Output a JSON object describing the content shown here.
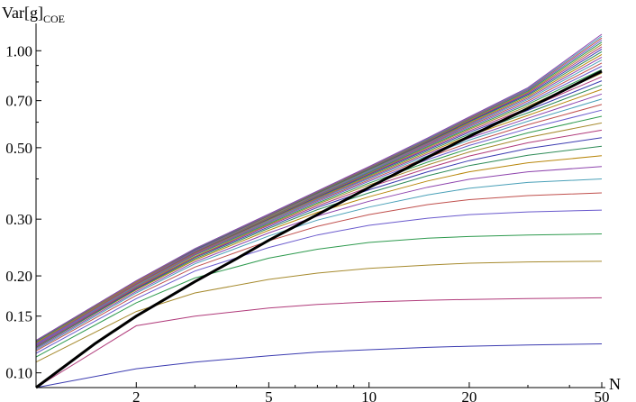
{
  "chart_data": {
    "type": "line",
    "title": "",
    "xlabel": "N",
    "ylabel": {
      "main": "Var[g]",
      "sub": "COE"
    },
    "xscale": "log",
    "yscale": "log",
    "xlim": [
      1,
      50
    ],
    "ylim": [
      0.09,
      1.2
    ],
    "xticks": [
      {
        "value": 2,
        "label": "2"
      },
      {
        "value": 5,
        "label": "5"
      },
      {
        "value": 10,
        "label": "10"
      },
      {
        "value": 20,
        "label": "20"
      },
      {
        "value": 50,
        "label": "50"
      }
    ],
    "yticks": [
      {
        "value": 0.1,
        "label": "0.10"
      },
      {
        "value": 0.15,
        "label": "0.15"
      },
      {
        "value": 0.2,
        "label": "0.20"
      },
      {
        "value": 0.3,
        "label": "0.30"
      },
      {
        "value": 0.5,
        "label": "0.50"
      },
      {
        "value": 0.7,
        "label": "0.70"
      },
      {
        "value": 1.0,
        "label": "1.00"
      }
    ],
    "grid": false,
    "legend": "none",
    "palette": [
      "#3b3bb0",
      "#b03a7a",
      "#a68a2e",
      "#2e9a4e",
      "#6a5acd",
      "#c0504d",
      "#4aa0b8",
      "#8e44ad",
      "#b8860b",
      "#2e8b57"
    ],
    "series": [
      {
        "color": "#3b3bb0",
        "x": [
          1,
          2,
          3,
          5,
          7,
          10,
          15,
          20,
          30,
          50
        ],
        "y": [
          0.09,
          0.103,
          0.108,
          0.113,
          0.116,
          0.118,
          0.12,
          0.121,
          0.122,
          0.123
        ]
      },
      {
        "color": "#b03a7a",
        "x": [
          1,
          2,
          3,
          5,
          7,
          10,
          15,
          20,
          30,
          50
        ],
        "y": [
          0.09,
          0.14,
          0.15,
          0.159,
          0.163,
          0.166,
          0.168,
          0.169,
          0.17,
          0.171
        ]
      },
      {
        "color": "#a68a2e",
        "x": [
          1,
          2,
          3,
          5,
          7,
          10,
          15,
          20,
          30,
          50
        ],
        "y": [
          0.108,
          0.155,
          0.177,
          0.195,
          0.204,
          0.211,
          0.216,
          0.219,
          0.221,
          0.222
        ]
      },
      {
        "color": "#2e9a4e",
        "x": [
          1,
          2,
          3,
          5,
          7,
          10,
          15,
          20,
          30,
          50
        ],
        "y": [
          0.112,
          0.165,
          0.197,
          0.227,
          0.242,
          0.254,
          0.262,
          0.265,
          0.268,
          0.27
        ]
      },
      {
        "color": "#6a5acd",
        "x": [
          1,
          2,
          3,
          5,
          7,
          10,
          15,
          20,
          30,
          50
        ],
        "y": [
          0.115,
          0.17,
          0.207,
          0.245,
          0.268,
          0.287,
          0.302,
          0.31,
          0.316,
          0.32
        ]
      },
      {
        "color": "#c0504d",
        "x": [
          1,
          2,
          3,
          5,
          7,
          10,
          15,
          20,
          30,
          50
        ],
        "y": [
          0.117,
          0.174,
          0.213,
          0.257,
          0.285,
          0.31,
          0.333,
          0.345,
          0.355,
          0.362
        ]
      },
      {
        "color": "#4aa0b8",
        "x": [
          1,
          2,
          3,
          5,
          7,
          10,
          15,
          20,
          30,
          50
        ],
        "y": [
          0.118,
          0.177,
          0.218,
          0.266,
          0.298,
          0.327,
          0.357,
          0.374,
          0.39,
          0.4
        ]
      },
      {
        "color": "#8e44ad",
        "x": [
          1,
          2,
          3,
          5,
          7,
          10,
          15,
          20,
          30,
          50
        ],
        "y": [
          0.119,
          0.179,
          0.221,
          0.272,
          0.307,
          0.341,
          0.377,
          0.399,
          0.421,
          0.437
        ]
      },
      {
        "color": "#b8860b",
        "x": [
          1,
          2,
          3,
          5,
          7,
          10,
          15,
          20,
          30,
          50
        ],
        "y": [
          0.12,
          0.181,
          0.224,
          0.277,
          0.315,
          0.352,
          0.394,
          0.421,
          0.449,
          0.472
        ]
      },
      {
        "color": "#2e8b57",
        "x": [
          1,
          2,
          3,
          5,
          7,
          10,
          15,
          20,
          30,
          50
        ],
        "y": [
          0.12,
          0.182,
          0.226,
          0.281,
          0.321,
          0.362,
          0.409,
          0.44,
          0.474,
          0.505
        ]
      },
      {
        "color": "#3b3bb0",
        "x": [
          1,
          2,
          3,
          5,
          7,
          10,
          15,
          20,
          30,
          50
        ],
        "y": [
          0.121,
          0.183,
          0.228,
          0.284,
          0.326,
          0.37,
          0.421,
          0.456,
          0.497,
          0.537
        ]
      },
      {
        "color": "#b03a7a",
        "x": [
          1,
          2,
          3,
          5,
          7,
          10,
          15,
          20,
          30,
          50
        ],
        "y": [
          0.121,
          0.184,
          0.229,
          0.287,
          0.33,
          0.377,
          0.432,
          0.471,
          0.518,
          0.567
        ]
      },
      {
        "color": "#a68a2e",
        "x": [
          1,
          2,
          3,
          5,
          7,
          10,
          15,
          20,
          30,
          50
        ],
        "y": [
          0.122,
          0.185,
          0.23,
          0.289,
          0.334,
          0.383,
          0.442,
          0.485,
          0.538,
          0.597
        ]
      },
      {
        "color": "#2e9a4e",
        "x": [
          1,
          2,
          3,
          5,
          7,
          10,
          15,
          20,
          30,
          50
        ],
        "y": [
          0.122,
          0.186,
          0.232,
          0.291,
          0.337,
          0.388,
          0.451,
          0.497,
          0.556,
          0.626
        ]
      },
      {
        "color": "#6a5acd",
        "x": [
          1,
          2,
          3,
          5,
          7,
          10,
          15,
          20,
          30,
          50
        ],
        "y": [
          0.122,
          0.186,
          0.233,
          0.293,
          0.34,
          0.393,
          0.459,
          0.508,
          0.573,
          0.654
        ]
      },
      {
        "color": "#c0504d",
        "x": [
          1,
          2,
          3,
          5,
          7,
          10,
          15,
          20,
          30,
          50
        ],
        "y": [
          0.123,
          0.187,
          0.234,
          0.295,
          0.343,
          0.397,
          0.466,
          0.518,
          0.589,
          0.681
        ]
      },
      {
        "color": "#4aa0b8",
        "x": [
          1,
          2,
          3,
          5,
          7,
          10,
          15,
          20,
          30,
          50
        ],
        "y": [
          0.123,
          0.187,
          0.235,
          0.296,
          0.345,
          0.401,
          0.472,
          0.528,
          0.604,
          0.708
        ]
      },
      {
        "color": "#8e44ad",
        "x": [
          1,
          2,
          3,
          5,
          7,
          10,
          15,
          20,
          30,
          50
        ],
        "y": [
          0.123,
          0.188,
          0.235,
          0.298,
          0.347,
          0.404,
          0.478,
          0.536,
          0.617,
          0.734
        ]
      },
      {
        "color": "#b8860b",
        "x": [
          1,
          2,
          3,
          5,
          7,
          10,
          15,
          20,
          30,
          50
        ],
        "y": [
          0.124,
          0.188,
          0.236,
          0.299,
          0.349,
          0.407,
          0.483,
          0.544,
          0.63,
          0.759
        ]
      },
      {
        "color": "#2e8b57",
        "x": [
          1,
          2,
          3,
          5,
          7,
          10,
          15,
          20,
          30,
          50
        ],
        "y": [
          0.124,
          0.189,
          0.237,
          0.3,
          0.351,
          0.41,
          0.488,
          0.551,
          0.642,
          0.783
        ]
      },
      {
        "color": "#3b3bb0",
        "x": [
          1,
          2,
          3,
          5,
          7,
          10,
          15,
          20,
          30,
          50
        ],
        "y": [
          0.124,
          0.189,
          0.237,
          0.301,
          0.352,
          0.413,
          0.493,
          0.558,
          0.653,
          0.807
        ]
      },
      {
        "color": "#b03a7a",
        "x": [
          1,
          2,
          3,
          5,
          7,
          10,
          15,
          20,
          30,
          50
        ],
        "y": [
          0.124,
          0.189,
          0.238,
          0.302,
          0.354,
          0.415,
          0.497,
          0.564,
          0.663,
          0.83
        ]
      },
      {
        "color": "#a68a2e",
        "x": [
          1,
          2,
          3,
          5,
          7,
          10,
          15,
          20,
          30,
          50
        ],
        "y": [
          0.124,
          0.19,
          0.238,
          0.303,
          0.355,
          0.417,
          0.501,
          0.57,
          0.673,
          0.852
        ]
      },
      {
        "color": "#2e9a4e",
        "x": [
          1,
          2,
          3,
          5,
          7,
          10,
          15,
          20,
          30,
          50
        ],
        "y": [
          0.125,
          0.19,
          0.239,
          0.304,
          0.356,
          0.419,
          0.504,
          0.575,
          0.682,
          0.874
        ]
      },
      {
        "color": "#6a5acd",
        "x": [
          1,
          2,
          3,
          5,
          7,
          10,
          15,
          20,
          30,
          50
        ],
        "y": [
          0.125,
          0.19,
          0.239,
          0.305,
          0.357,
          0.421,
          0.508,
          0.58,
          0.69,
          0.895
        ]
      },
      {
        "color": "#c0504d",
        "x": [
          1,
          2,
          3,
          5,
          7,
          10,
          15,
          20,
          30,
          50
        ],
        "y": [
          0.125,
          0.191,
          0.24,
          0.305,
          0.358,
          0.423,
          0.511,
          0.585,
          0.698,
          0.916
        ]
      },
      {
        "color": "#4aa0b8",
        "x": [
          1,
          2,
          3,
          5,
          7,
          10,
          15,
          20,
          30,
          50
        ],
        "y": [
          0.125,
          0.191,
          0.24,
          0.306,
          0.359,
          0.424,
          0.514,
          0.589,
          0.706,
          0.936
        ]
      },
      {
        "color": "#8e44ad",
        "x": [
          1,
          2,
          3,
          5,
          7,
          10,
          15,
          20,
          30,
          50
        ],
        "y": [
          0.125,
          0.191,
          0.24,
          0.307,
          0.36,
          0.426,
          0.516,
          0.593,
          0.713,
          0.955
        ]
      },
      {
        "color": "#b8860b",
        "x": [
          1,
          2,
          3,
          5,
          7,
          10,
          15,
          20,
          30,
          50
        ],
        "y": [
          0.125,
          0.191,
          0.241,
          0.307,
          0.361,
          0.427,
          0.519,
          0.597,
          0.72,
          0.974
        ]
      },
      {
        "color": "#2e8b57",
        "x": [
          1,
          2,
          3,
          5,
          7,
          10,
          15,
          20,
          30,
          50
        ],
        "y": [
          0.125,
          0.192,
          0.241,
          0.308,
          0.362,
          0.428,
          0.521,
          0.601,
          0.727,
          0.993
        ]
      },
      {
        "color": "#3b3bb0",
        "x": [
          1,
          2,
          3,
          5,
          7,
          10,
          15,
          20,
          30,
          50
        ],
        "y": [
          0.126,
          0.192,
          0.241,
          0.308,
          0.363,
          0.43,
          0.523,
          0.604,
          0.733,
          1.011
        ]
      },
      {
        "color": "#b03a7a",
        "x": [
          1,
          2,
          3,
          5,
          7,
          10,
          15,
          20,
          30,
          50
        ],
        "y": [
          0.126,
          0.192,
          0.242,
          0.309,
          0.364,
          0.431,
          0.525,
          0.607,
          0.739,
          1.029
        ]
      },
      {
        "color": "#a68a2e",
        "x": [
          1,
          2,
          3,
          5,
          7,
          10,
          15,
          20,
          30,
          50
        ],
        "y": [
          0.126,
          0.192,
          0.242,
          0.309,
          0.364,
          0.432,
          0.527,
          0.61,
          0.744,
          1.046
        ]
      },
      {
        "color": "#2e9a4e",
        "x": [
          1,
          2,
          3,
          5,
          7,
          10,
          15,
          20,
          30,
          50
        ],
        "y": [
          0.126,
          0.193,
          0.242,
          0.31,
          0.365,
          0.433,
          0.529,
          0.613,
          0.749,
          1.063
        ]
      },
      {
        "color": "#6a5acd",
        "x": [
          1,
          2,
          3,
          5,
          7,
          10,
          15,
          20,
          30,
          50
        ],
        "y": [
          0.126,
          0.193,
          0.243,
          0.31,
          0.366,
          0.434,
          0.531,
          0.616,
          0.754,
          1.079
        ]
      },
      {
        "color": "#c0504d",
        "x": [
          1,
          2,
          3,
          5,
          7,
          10,
          15,
          20,
          30,
          50
        ],
        "y": [
          0.126,
          0.193,
          0.243,
          0.311,
          0.366,
          0.435,
          0.533,
          0.618,
          0.759,
          1.095
        ]
      },
      {
        "color": "#4aa0b8",
        "x": [
          1,
          2,
          3,
          5,
          7,
          10,
          15,
          20,
          30,
          50
        ],
        "y": [
          0.126,
          0.193,
          0.243,
          0.311,
          0.367,
          0.436,
          0.534,
          0.621,
          0.763,
          1.11
        ]
      },
      {
        "color": "#8e44ad",
        "x": [
          1,
          2,
          3,
          5,
          7,
          10,
          15,
          20,
          30,
          50
        ],
        "y": [
          0.126,
          0.193,
          0.243,
          0.311,
          0.367,
          0.437,
          0.536,
          0.623,
          0.768,
          1.125
        ]
      }
    ],
    "reference_curve": {
      "color": "#000000",
      "x": [
        1,
        1.5,
        2,
        3,
        4,
        5,
        7,
        10,
        15,
        20,
        30,
        50
      ],
      "y": [
        0.09,
        0.123,
        0.15,
        0.192,
        0.226,
        0.258,
        0.31,
        0.376,
        0.467,
        0.542,
        0.662,
        0.864
      ]
    }
  }
}
